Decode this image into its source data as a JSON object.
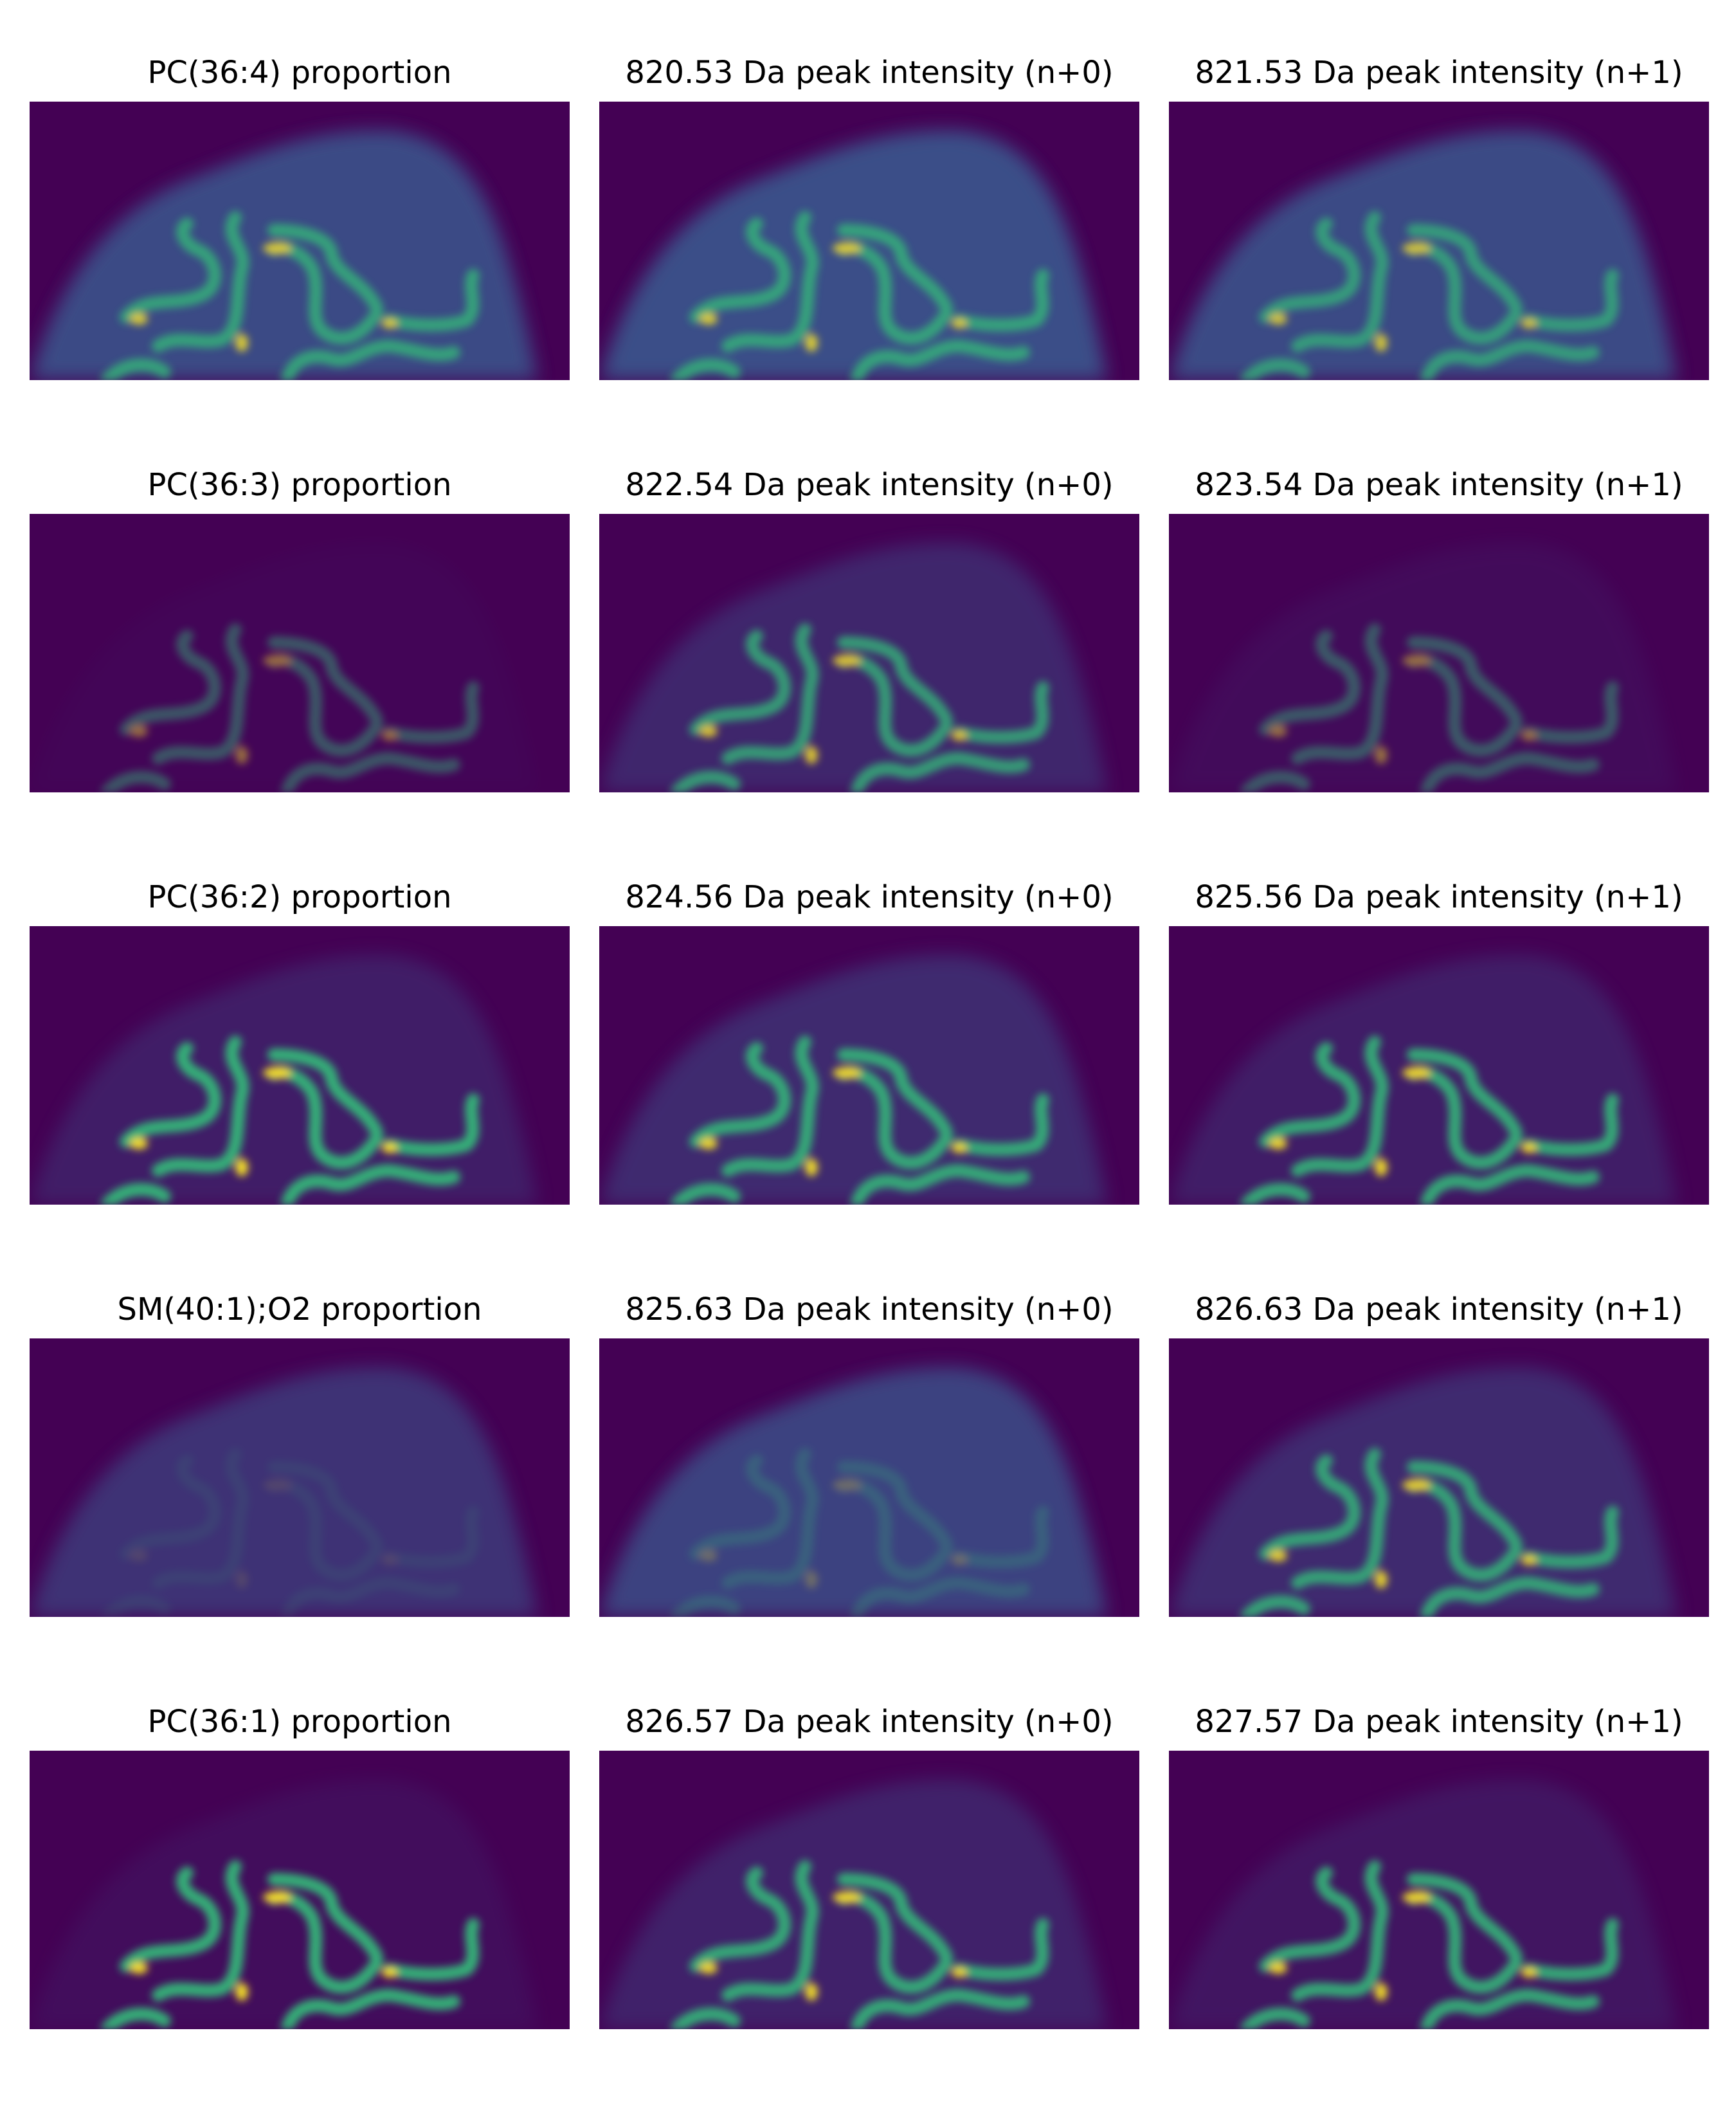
{
  "rows": [
    [
      "PC(36:4) proportion",
      "820.53 Da peak intensity (n+0)",
      "821.53 Da peak intensity (n+1)"
    ],
    [
      "PC(36:3) proportion",
      "822.54 Da peak intensity (n+0)",
      "823.54 Da peak intensity (n+1)"
    ],
    [
      "PC(36:2) proportion",
      "824.56 Da peak intensity (n+0)",
      "825.56 Da peak intensity (n+1)"
    ],
    [
      "SM(40:1);O2 proportion",
      "825.63 Da peak intensity (n+0)",
      "826.63 Da peak intensity (n+1)"
    ],
    [
      "PC(36:1) proportion",
      "826.57 Da peak intensity (n+0)",
      "827.57 Da peak intensity (n+1)"
    ]
  ]
}
